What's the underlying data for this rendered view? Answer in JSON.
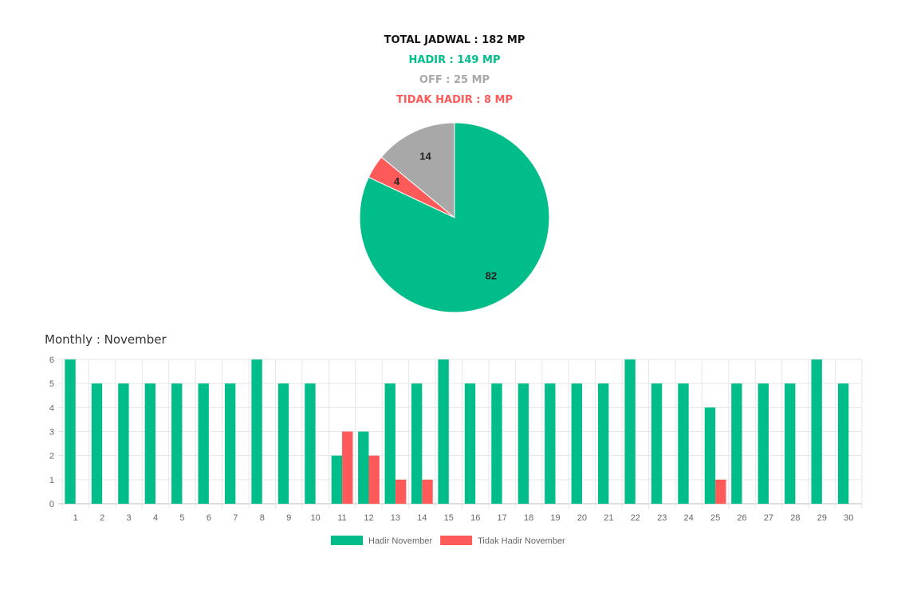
{
  "summary": {
    "total": "TOTAL JADWAL : 182 MP",
    "hadir": "HADIR : 149 MP",
    "off": "OFF : 25 MP",
    "tidak_hadir": "TIDAK HADIR : 8 MP"
  },
  "monthly_title": "Monthly : November",
  "chart_data": [
    {
      "type": "pie",
      "labels": [
        "Hadir",
        "Tidak Hadir",
        "Off"
      ],
      "values": [
        82,
        4,
        14
      ],
      "colors": [
        "#00bd8a",
        "#ff5a5a",
        "#a8a8a8"
      ]
    },
    {
      "type": "bar",
      "categories": [
        "1",
        "2",
        "3",
        "4",
        "5",
        "6",
        "7",
        "8",
        "9",
        "10",
        "11",
        "12",
        "13",
        "14",
        "15",
        "16",
        "17",
        "18",
        "19",
        "20",
        "21",
        "22",
        "23",
        "24",
        "25",
        "26",
        "27",
        "28",
        "29",
        "30"
      ],
      "series": [
        {
          "name": "Hadir November",
          "color": "#00bd8a",
          "values": [
            6,
            5,
            5,
            5,
            5,
            5,
            5,
            6,
            5,
            5,
            2,
            3,
            5,
            5,
            6,
            5,
            5,
            5,
            5,
            5,
            5,
            6,
            5,
            5,
            4,
            5,
            5,
            5,
            6,
            5
          ]
        },
        {
          "name": "Tidak Hadir November",
          "color": "#ff5a5a",
          "values": [
            0,
            0,
            0,
            0,
            0,
            0,
            0,
            0,
            0,
            0,
            3,
            2,
            1,
            1,
            0,
            0,
            0,
            0,
            0,
            0,
            0,
            0,
            0,
            0,
            1,
            0,
            0,
            0,
            0,
            0
          ]
        }
      ],
      "yticks": [
        "0",
        "1",
        "2",
        "3",
        "4",
        "5",
        "6"
      ],
      "ylim": [
        0,
        6
      ],
      "grid": true,
      "legend": "bottom"
    }
  ]
}
